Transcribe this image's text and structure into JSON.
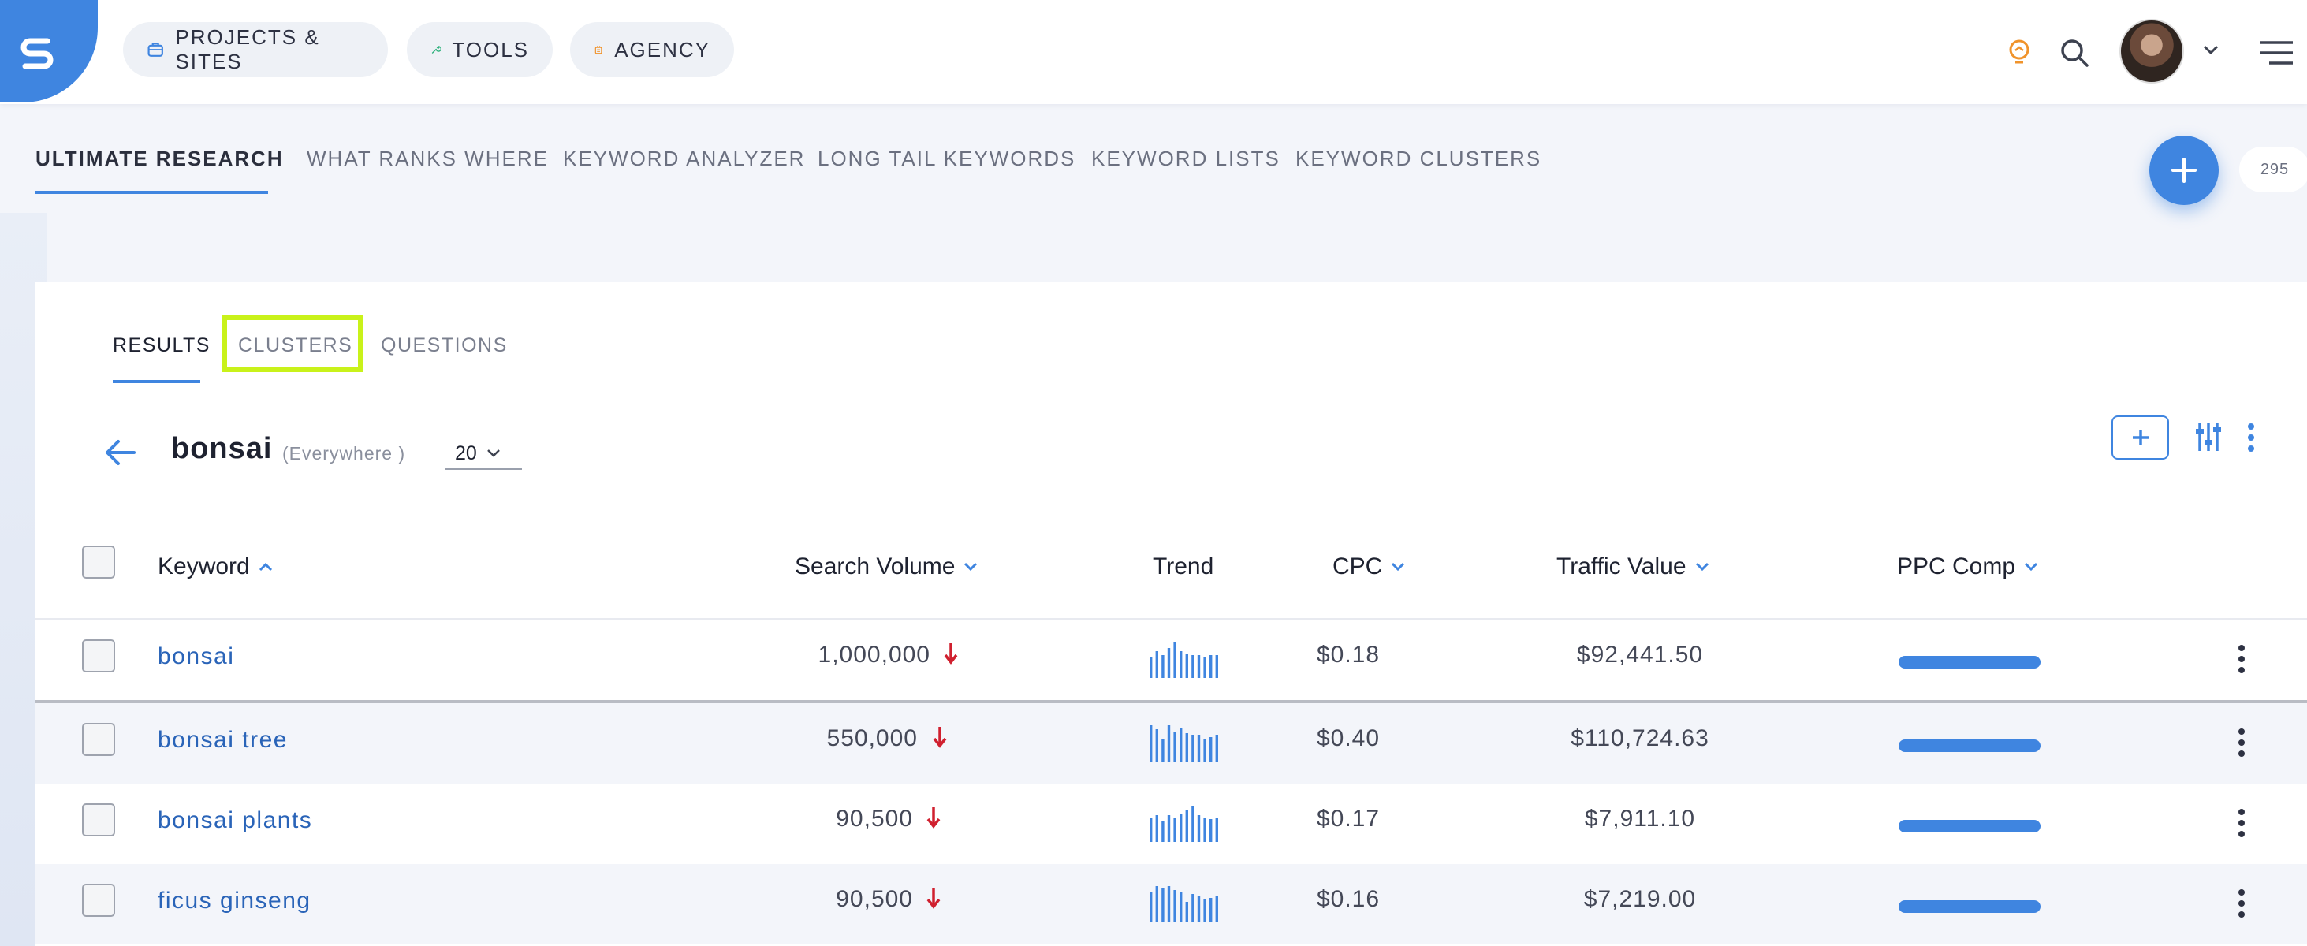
{
  "topnav": {
    "projects_label": "PROJECTS & SITES",
    "tools_label": "TOOLS",
    "agency_label": "AGENCY"
  },
  "research_tabs": [
    {
      "label": "ULTIMATE RESEARCH",
      "active": true
    },
    {
      "label": "WHAT RANKS WHERE"
    },
    {
      "label": "KEYWORD ANALYZER"
    },
    {
      "label": "LONG TAIL KEYWORDS"
    },
    {
      "label": "KEYWORD LISTS"
    },
    {
      "label": "KEYWORD CLUSTERS"
    }
  ],
  "credits": "295",
  "sub_tabs": [
    {
      "label": "RESULTS",
      "active": true
    },
    {
      "label": "CLUSTERS",
      "highlighted": true
    },
    {
      "label": "QUESTIONS"
    }
  ],
  "query": {
    "keyword": "bonsai",
    "location": "(Everywhere )",
    "count": "20"
  },
  "table": {
    "headers": {
      "keyword": "Keyword",
      "search_volume": "Search Volume",
      "trend": "Trend",
      "cpc": "CPC",
      "traffic_value": "Traffic Value",
      "ppc_comp": "PPC Comp"
    },
    "rows": [
      {
        "keyword": "bonsai",
        "search_volume": "1,000,000",
        "trend_direction": "down",
        "cpc": "$0.18",
        "traffic_value": "$92,441.50",
        "ppc_comp": 1.0,
        "trend": [
          0.55,
          0.7,
          0.6,
          0.8,
          0.95,
          0.7,
          0.65,
          0.6,
          0.6,
          0.55,
          0.6,
          0.6
        ]
      },
      {
        "keyword": "bonsai tree",
        "search_volume": "550,000",
        "trend_direction": "down",
        "cpc": "$0.40",
        "traffic_value": "$110,724.63",
        "ppc_comp": 1.0,
        "trend": [
          0.95,
          0.85,
          0.6,
          0.95,
          0.8,
          0.9,
          0.75,
          0.7,
          0.7,
          0.6,
          0.65,
          0.7
        ]
      },
      {
        "keyword": "bonsai plants",
        "search_volume": "90,500",
        "trend_direction": "down",
        "cpc": "$0.17",
        "traffic_value": "$7,911.10",
        "ppc_comp": 1.0,
        "trend": [
          0.65,
          0.7,
          0.55,
          0.7,
          0.65,
          0.75,
          0.85,
          0.95,
          0.7,
          0.65,
          0.6,
          0.65
        ]
      },
      {
        "keyword": "ficus ginseng",
        "search_volume": "90,500",
        "trend_direction": "down",
        "cpc": "$0.16",
        "traffic_value": "$7,219.00",
        "ppc_comp": 1.0,
        "trend": [
          0.8,
          0.95,
          0.9,
          0.95,
          0.85,
          0.8,
          0.55,
          0.75,
          0.7,
          0.6,
          0.65,
          0.7
        ]
      }
    ]
  },
  "colors": {
    "accent": "#3f85e0",
    "link": "#2a64b8",
    "down_arrow": "#d0202f",
    "highlight": "#c9f21a"
  }
}
